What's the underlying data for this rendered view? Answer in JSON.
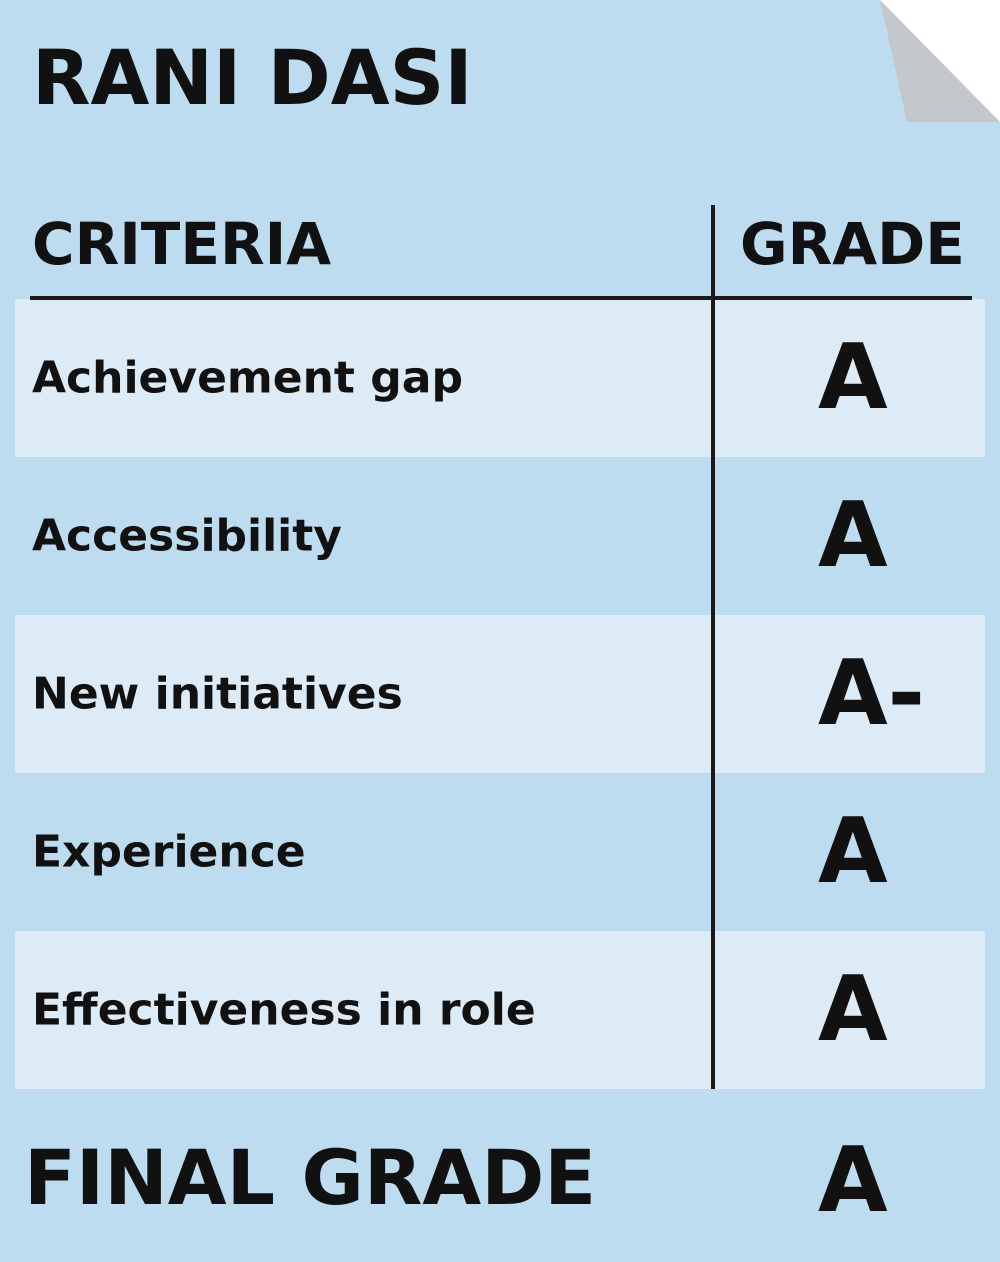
{
  "card": {
    "name": "RANI DASI",
    "colors": {
      "background": "#bddcef",
      "row_highlight": "#ddebf7",
      "fold": "#c4c8cc",
      "text": "#111111"
    }
  },
  "table": {
    "header_criteria": "CRITERIA",
    "header_grade": "GRADE",
    "rows": [
      {
        "criterion": "Achievement gap",
        "grade": "A"
      },
      {
        "criterion": "Accessibility",
        "grade": "A"
      },
      {
        "criterion": "New initiatives",
        "grade": "A-"
      },
      {
        "criterion": "Experience",
        "grade": "A"
      },
      {
        "criterion": "Effectiveness in role",
        "grade": "A"
      }
    ]
  },
  "final": {
    "label": "FINAL GRADE",
    "grade": "A"
  }
}
